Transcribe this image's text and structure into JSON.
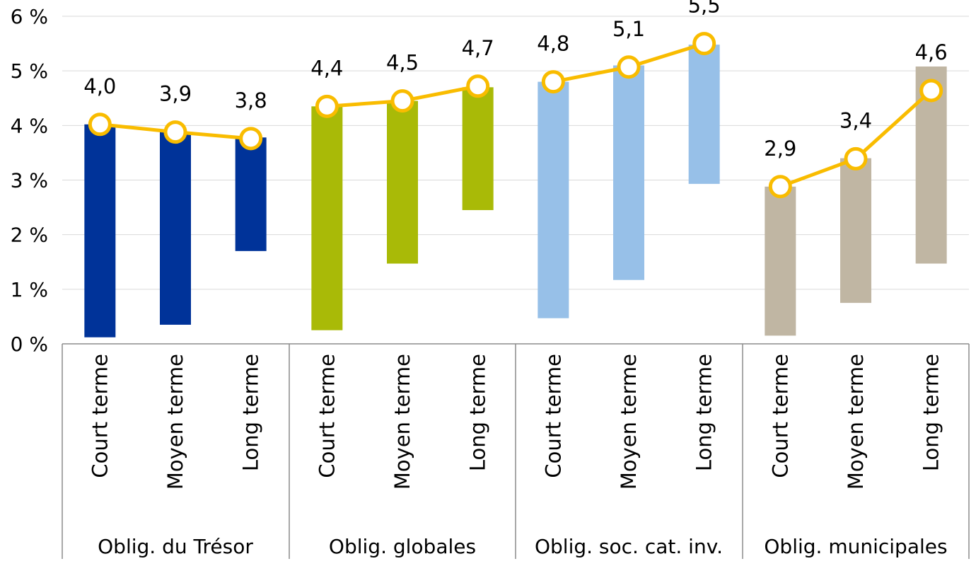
{
  "chart_data": {
    "type": "bar",
    "subtype": "floating-range-with-line",
    "title": "",
    "xlabel": "",
    "ylabel": "",
    "ylim": [
      0,
      6
    ],
    "yticks": [
      0,
      1,
      2,
      3,
      4,
      5,
      6
    ],
    "ytick_labels": [
      "0 %",
      "1 %",
      "2 %",
      "3 %",
      "4 %",
      "5 %",
      "6 %"
    ],
    "grid": true,
    "legend": "none",
    "groups": [
      {
        "name": "Oblig. du Trésor",
        "color": "#003399",
        "categories": [
          "Court terme",
          "Moyen terme",
          "Long terme"
        ],
        "range_low": [
          0.12,
          0.35,
          1.7
        ],
        "range_high": [
          4.02,
          3.88,
          3.78
        ],
        "current": [
          4.02,
          3.88,
          3.76
        ],
        "labels": [
          "4,0",
          "3,9",
          "3,8"
        ]
      },
      {
        "name": "Oblig. globales",
        "color": "#a9ba07",
        "categories": [
          "Court terme",
          "Moyen terme",
          "Long terme"
        ],
        "range_low": [
          0.25,
          1.47,
          2.45
        ],
        "range_high": [
          4.35,
          4.45,
          4.7
        ],
        "current": [
          4.35,
          4.45,
          4.72
        ],
        "labels": [
          "4,4",
          "4,5",
          "4,7"
        ]
      },
      {
        "name": "Oblig. soc. cat. inv.",
        "color": "#97c0e8",
        "categories": [
          "Court terme",
          "Moyen terme",
          "Long terme"
        ],
        "range_low": [
          0.47,
          1.17,
          2.93
        ],
        "range_high": [
          4.8,
          5.1,
          5.48
        ],
        "current": [
          4.8,
          5.07,
          5.5
        ],
        "labels": [
          "4,8",
          "5,1",
          "5,5"
        ]
      },
      {
        "name": "Oblig. municipales",
        "color": "#c0b6a3",
        "categories": [
          "Court terme",
          "Moyen terme",
          "Long terme"
        ],
        "range_low": [
          0.15,
          0.75,
          1.47
        ],
        "range_high": [
          2.88,
          3.4,
          5.08
        ],
        "current": [
          2.88,
          3.39,
          4.64
        ],
        "labels": [
          "2,9",
          "3,4",
          "4,6"
        ]
      }
    ],
    "line_color": "#f9bc00"
  }
}
